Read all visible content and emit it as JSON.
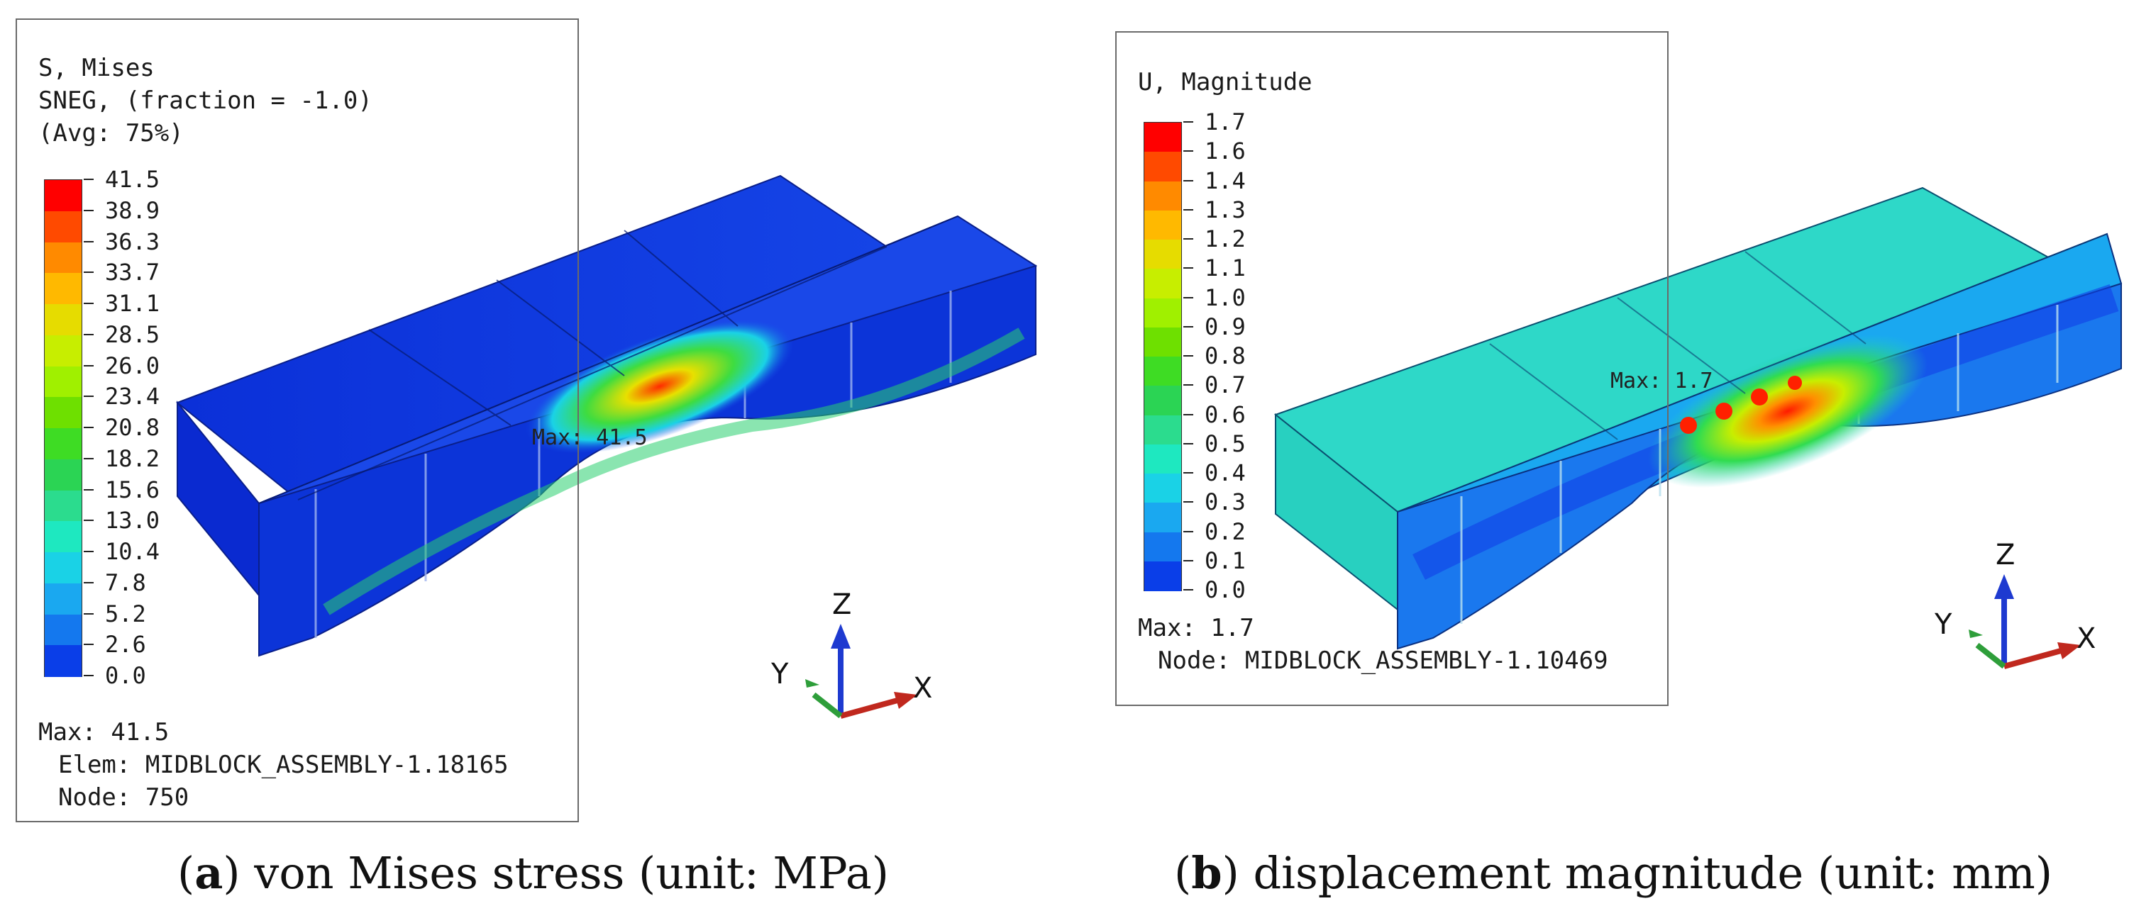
{
  "panel_a": {
    "legend": {
      "title": "S, Mises",
      "line2": "SNEG, (fraction = -1.0)",
      "line3": "(Avg: 75%)",
      "ticks": [
        "41.5",
        "38.9",
        "36.3",
        "33.7",
        "31.1",
        "28.5",
        "26.0",
        "23.4",
        "20.8",
        "18.2",
        "15.6",
        "13.0",
        "10.4",
        "7.8",
        "5.2",
        "2.6",
        "0.0"
      ],
      "colors": [
        "#ff0000",
        "#ff4a00",
        "#ff8a00",
        "#ffb900",
        "#e6dc00",
        "#c7ee00",
        "#a0f000",
        "#6ee000",
        "#3edc24",
        "#2bd454",
        "#2bdc8e",
        "#1ee8c0",
        "#1ad2e6",
        "#1aa8f0",
        "#1478ee",
        "#0a3ee8"
      ],
      "max": "Max: 41.5",
      "elem": "Elem: MIDBLOCK_ASSEMBLY-1.18165",
      "node": "Node: 750"
    },
    "max_marker": "Max: 41.5",
    "caption_letter": "a",
    "caption_text": ") von Mises stress (unit: MPa)"
  },
  "panel_b": {
    "legend": {
      "title": "U, Magnitude",
      "ticks": [
        "1.7",
        "1.6",
        "1.4",
        "1.3",
        "1.2",
        "1.1",
        "1.0",
        "0.9",
        "0.8",
        "0.7",
        "0.6",
        "0.5",
        "0.4",
        "0.3",
        "0.2",
        "0.1",
        "0.0"
      ],
      "colors": [
        "#ff0000",
        "#ff4a00",
        "#ff8a00",
        "#ffb900",
        "#e6dc00",
        "#c7ee00",
        "#a0f000",
        "#6ee000",
        "#3edc24",
        "#2bd454",
        "#2bdc8e",
        "#1ee8c0",
        "#1ad2e6",
        "#1aa8f0",
        "#1478ee",
        "#0a3ee8"
      ],
      "max": "Max: 1.7",
      "node": "Node: MIDBLOCK_ASSEMBLY-1.10469"
    },
    "max_marker": "Max: 1.7",
    "caption_letter": "b",
    "caption_text": ") displacement magnitude (unit: mm)"
  },
  "axes": {
    "x": "X",
    "y": "Y",
    "z": "Z"
  },
  "colors": {
    "stress_base": "#0a2ee0",
    "disp_base": "#2bd8c8",
    "axis_x": "#c0281e",
    "axis_y": "#2e9e3a",
    "axis_z": "#1e3ad0"
  }
}
